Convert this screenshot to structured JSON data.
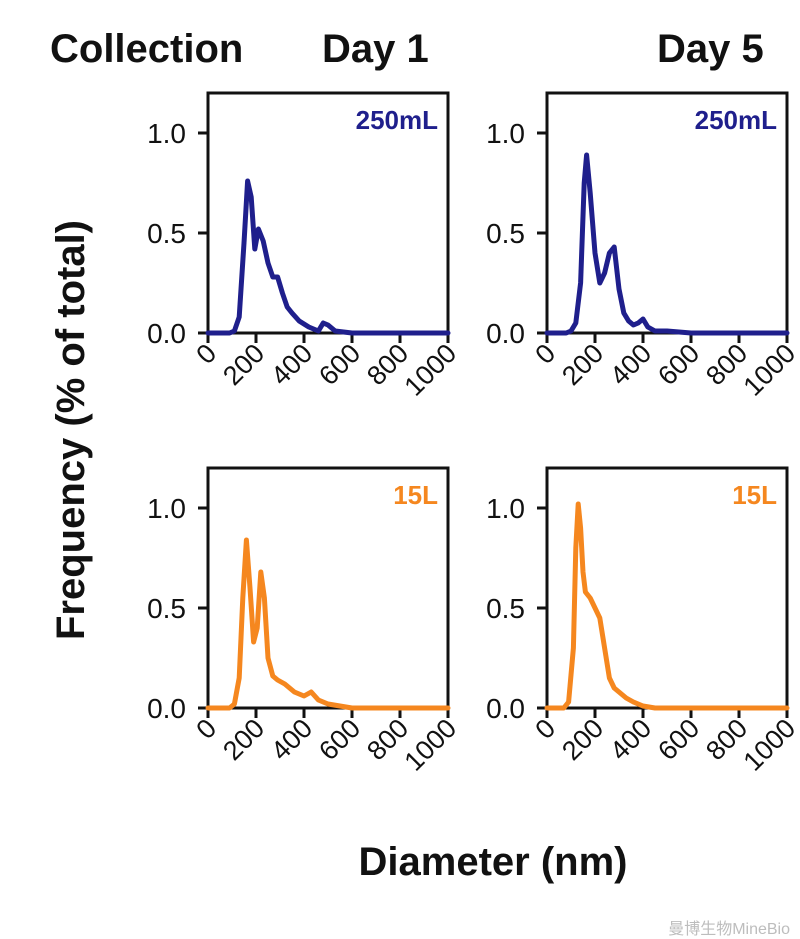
{
  "header": {
    "collection_label": "Collection",
    "day1_label": "Day 1",
    "day5_label": "Day 5"
  },
  "ylabel": "Frequency (% of total)",
  "xlabel": "Diameter (nm)",
  "watermark": "曼博生物MineBio",
  "colors": {
    "series_250mL": "#1f1f8c",
    "series_15L": "#f5871f"
  },
  "chart_data": [
    {
      "type": "line",
      "panel": "Day 1 / 250mL",
      "label": "250mL",
      "xlim": [
        0,
        1000
      ],
      "ylim": [
        0,
        1.0
      ],
      "xticks": [
        "0",
        "200",
        "400",
        "600",
        "800",
        "1000"
      ],
      "yticks": [
        "0.0",
        "0.5",
        "1.0"
      ],
      "x": [
        0,
        90,
        110,
        130,
        150,
        165,
        180,
        195,
        210,
        230,
        250,
        270,
        290,
        310,
        330,
        350,
        380,
        420,
        460,
        480,
        500,
        530,
        600,
        700,
        800,
        1000
      ],
      "y": [
        0,
        0,
        0.01,
        0.08,
        0.45,
        0.76,
        0.68,
        0.42,
        0.52,
        0.46,
        0.35,
        0.28,
        0.28,
        0.2,
        0.13,
        0.1,
        0.06,
        0.03,
        0.01,
        0.05,
        0.04,
        0.01,
        0,
        0,
        0,
        0
      ]
    },
    {
      "type": "line",
      "panel": "Day 5 / 250mL",
      "label": "250mL",
      "xlim": [
        0,
        1000
      ],
      "ylim": [
        0,
        1.0
      ],
      "xticks": [
        "0",
        "200",
        "400",
        "600",
        "800",
        "1000"
      ],
      "yticks": [
        "0.0",
        "0.5",
        "1.0"
      ],
      "x": [
        0,
        80,
        100,
        120,
        140,
        155,
        165,
        180,
        200,
        220,
        240,
        260,
        280,
        300,
        320,
        340,
        360,
        380,
        400,
        420,
        450,
        500,
        600,
        700,
        800,
        1000
      ],
      "y": [
        0,
        0,
        0.01,
        0.05,
        0.25,
        0.75,
        0.89,
        0.7,
        0.4,
        0.25,
        0.3,
        0.4,
        0.43,
        0.22,
        0.1,
        0.06,
        0.04,
        0.05,
        0.07,
        0.03,
        0.01,
        0.01,
        0,
        0,
        0,
        0
      ]
    },
    {
      "type": "line",
      "panel": "Day 1 / 15L",
      "label": "15L",
      "xlim": [
        0,
        1000
      ],
      "ylim": [
        0,
        1.0
      ],
      "xticks": [
        "0",
        "200",
        "400",
        "600",
        "800",
        "1000"
      ],
      "yticks": [
        "0.0",
        "0.5",
        "1.0"
      ],
      "x": [
        0,
        90,
        110,
        130,
        145,
        160,
        175,
        190,
        205,
        220,
        235,
        250,
        270,
        290,
        320,
        360,
        400,
        430,
        460,
        500,
        550,
        600,
        700,
        800,
        1000
      ],
      "y": [
        0,
        0,
        0.02,
        0.15,
        0.55,
        0.84,
        0.6,
        0.33,
        0.4,
        0.68,
        0.55,
        0.25,
        0.16,
        0.14,
        0.12,
        0.08,
        0.06,
        0.08,
        0.04,
        0.02,
        0.01,
        0,
        0,
        0,
        0
      ]
    },
    {
      "type": "line",
      "panel": "Day 5 / 15L",
      "label": "15L",
      "xlim": [
        0,
        1000
      ],
      "ylim": [
        0,
        1.0
      ],
      "xticks": [
        "0",
        "200",
        "400",
        "600",
        "800",
        "1000"
      ],
      "yticks": [
        "0.0",
        "0.5",
        "1.0"
      ],
      "x": [
        0,
        70,
        90,
        110,
        120,
        130,
        140,
        150,
        160,
        180,
        200,
        220,
        240,
        260,
        280,
        300,
        330,
        360,
        400,
        450,
        500,
        600,
        800,
        1000
      ],
      "y": [
        0,
        0,
        0.03,
        0.3,
        0.8,
        1.02,
        0.9,
        0.68,
        0.58,
        0.55,
        0.5,
        0.45,
        0.3,
        0.15,
        0.1,
        0.08,
        0.05,
        0.03,
        0.01,
        0,
        0,
        0,
        0,
        0
      ]
    }
  ]
}
